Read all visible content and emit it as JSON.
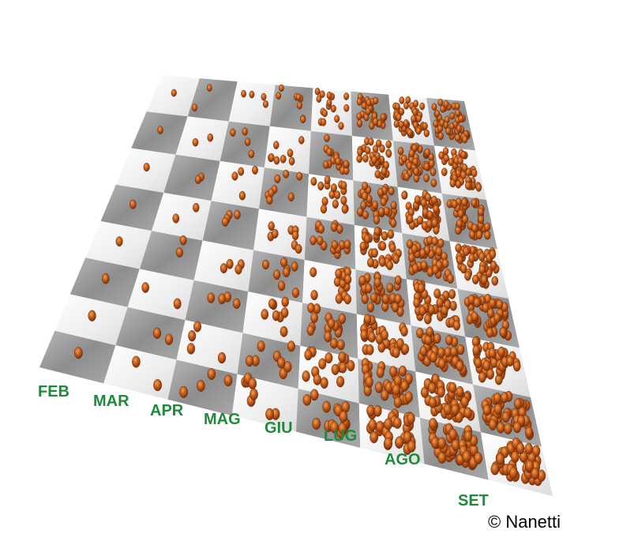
{
  "labels": [
    "FEB",
    "MAR",
    "APR",
    "MAG",
    "GIU",
    "LUG",
    "AGO",
    "SET"
  ],
  "credit": "© Nanetti"
}
